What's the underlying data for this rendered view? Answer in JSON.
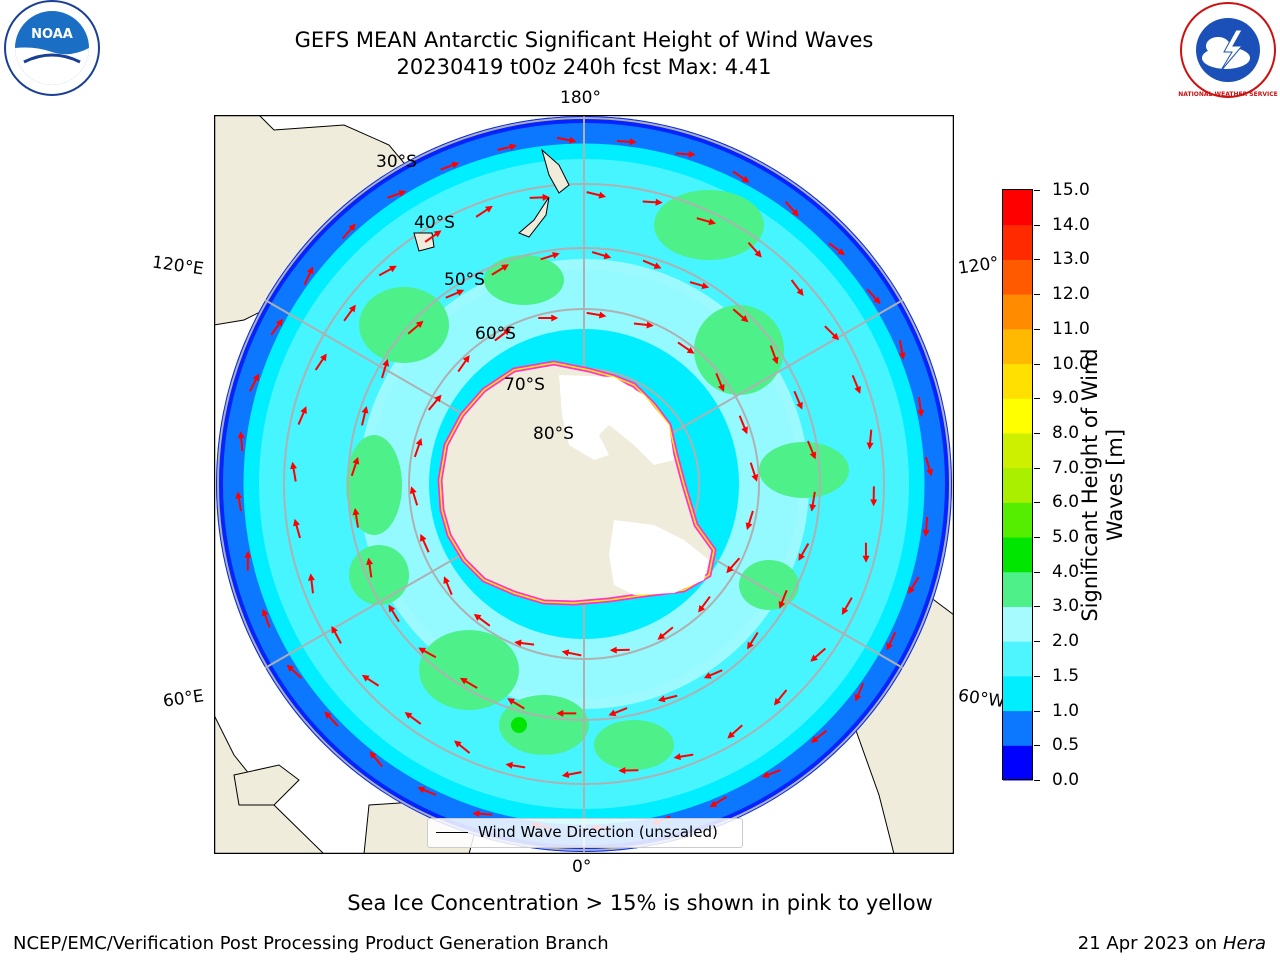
{
  "title": {
    "line1": "GEFS MEAN Antarctic Significant Height of Wind Waves",
    "line2": "20230419 t00z 240h fcst   Max: 4.41"
  },
  "logos": {
    "left": {
      "icon": "noaa-logo",
      "text": "NOAA"
    },
    "right": {
      "icon": "national-weather-service-logo",
      "text": "NATIONAL WEATHER SERVICE"
    }
  },
  "map": {
    "projection": "south-polar-stereographic",
    "longitude_labels": {
      "top": "180°",
      "bottom": "0°",
      "upper_left": "120°E",
      "lower_left": "60°E",
      "upper_right": "120°",
      "lower_right": "60°W"
    },
    "latitude_labels": [
      "30°S",
      "40°S",
      "50°S",
      "60°S",
      "70°S",
      "80°S"
    ],
    "legend": "Wind Wave Direction (unscaled)",
    "colors": {
      "land": "#efecdc",
      "ice_sheet": "#ffffff",
      "sea_ice_edge": "#ff33cc",
      "arrows": "#ff0000",
      "graticule": "#b0b0b0"
    }
  },
  "colorbar": {
    "label_line1": "Significant Height of Wind",
    "label_line2": "Waves [m]",
    "ticks": [
      "0.0",
      "0.5",
      "1.0",
      "1.5",
      "2.0",
      "3.0",
      "4.0",
      "5.0",
      "6.0",
      "7.0",
      "8.0",
      "9.0",
      "10.0",
      "11.0",
      "12.0",
      "13.0",
      "14.0",
      "15.0"
    ],
    "colors": [
      "#0000ff",
      "#0c78ff",
      "#00eeff",
      "#4ef5ff",
      "#a5fbff",
      "#4ef08a",
      "#00e600",
      "#55ee00",
      "#aaee00",
      "#ccf000",
      "#ffff00",
      "#ffe000",
      "#ffb900",
      "#ff8c00",
      "#ff5a00",
      "#ff2a00",
      "#ff0000"
    ]
  },
  "caption": "Sea Ice Concentration > 15% is shown in pink to yellow",
  "footer": {
    "left": "NCEP/EMC/Verification Post Processing Product Generation Branch",
    "right_prefix": "21 Apr 2023 on ",
    "right_host": "Hera"
  }
}
